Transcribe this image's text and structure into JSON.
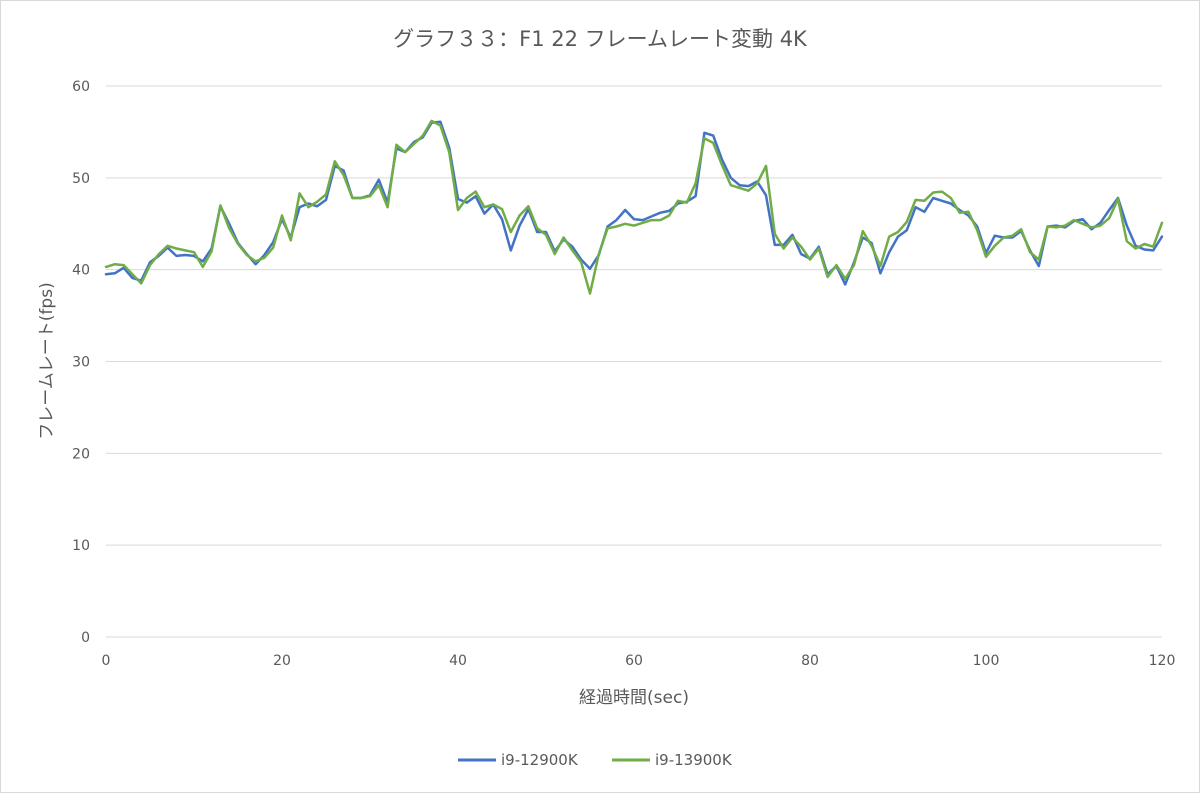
{
  "chart_data": {
    "type": "line",
    "title": "グラフ３３：F1 22 フレームレート変動 4K",
    "xlabel": "経過時間(sec)",
    "ylabel": "フレームレート(fps)",
    "xlim": [
      0,
      120
    ],
    "ylim": [
      0,
      60
    ],
    "x_ticks": [
      0,
      20,
      40,
      60,
      80,
      100,
      120
    ],
    "y_ticks": [
      0,
      10,
      20,
      30,
      40,
      50,
      60
    ],
    "grid": "horizontal",
    "legend_position": "bottom",
    "colors": {
      "i9-12900K": "#4472c4",
      "i9-13900K": "#70ad47"
    },
    "x": [
      0,
      1,
      2,
      3,
      4,
      5,
      6,
      7,
      8,
      9,
      10,
      11,
      12,
      13,
      14,
      15,
      16,
      17,
      18,
      19,
      20,
      21,
      22,
      23,
      24,
      25,
      26,
      27,
      28,
      29,
      30,
      31,
      32,
      33,
      34,
      35,
      36,
      37,
      38,
      39,
      40,
      41,
      42,
      43,
      44,
      45,
      46,
      47,
      48,
      49,
      50,
      51,
      52,
      53,
      54,
      55,
      56,
      57,
      58,
      59,
      60,
      61,
      62,
      63,
      64,
      65,
      66,
      67,
      68,
      69,
      70,
      71,
      72,
      73,
      74,
      75,
      76,
      77,
      78,
      79,
      80,
      81,
      82,
      83,
      84,
      85,
      86,
      87,
      88,
      89,
      90,
      91,
      92,
      93,
      94,
      95,
      96,
      97,
      98,
      99,
      100,
      101,
      102,
      103,
      104,
      105,
      106,
      107,
      108,
      109,
      110,
      111,
      112,
      113,
      114,
      115,
      116,
      117,
      118,
      119,
      120
    ],
    "series": [
      {
        "name": "i9-12900K",
        "values": [
          39.5,
          39.6,
          40.2,
          39.1,
          38.8,
          40.8,
          41.5,
          42.4,
          41.5,
          41.6,
          41.5,
          40.9,
          42.3,
          46.9,
          45.0,
          42.9,
          41.7,
          40.6,
          41.6,
          43.0,
          45.5,
          43.5,
          46.8,
          47.2,
          46.9,
          47.6,
          51.3,
          50.8,
          47.8,
          47.8,
          48.1,
          49.8,
          47.3,
          53.2,
          52.8,
          53.9,
          54.4,
          56.0,
          56.1,
          53.3,
          47.7,
          47.3,
          48.0,
          46.1,
          47.1,
          45.5,
          42.1,
          44.8,
          46.6,
          44.1,
          44.1,
          42.0,
          43.3,
          42.5,
          41.1,
          40.1,
          41.6,
          44.7,
          45.4,
          46.5,
          45.5,
          45.4,
          45.8,
          46.2,
          46.4,
          47.2,
          47.4,
          48.0,
          54.9,
          54.6,
          52.0,
          50.0,
          49.2,
          49.1,
          49.6,
          48.1,
          42.7,
          42.7,
          43.8,
          41.7,
          41.2,
          42.5,
          39.5,
          40.4,
          38.4,
          40.8,
          43.5,
          42.9,
          39.6,
          41.9,
          43.6,
          44.3,
          46.8,
          46.3,
          47.8,
          47.5,
          47.2,
          46.5,
          45.9,
          44.7,
          41.8,
          43.7,
          43.5,
          43.5,
          44.2,
          42.1,
          40.4,
          44.7,
          44.8,
          44.6,
          45.3,
          45.5,
          44.4,
          45.1,
          46.5,
          47.8,
          44.8,
          42.6,
          42.2,
          42.1,
          43.6
        ],
        "label_visible": false
      },
      {
        "name": "i9-13900K",
        "values": [
          40.3,
          40.6,
          40.5,
          39.5,
          38.5,
          40.5,
          41.7,
          42.6,
          42.3,
          42.1,
          41.9,
          40.3,
          42.0,
          47.0,
          44.5,
          42.8,
          41.6,
          40.9,
          41.3,
          42.4,
          45.9,
          43.2,
          48.3,
          46.8,
          47.4,
          48.2,
          51.8,
          50.3,
          47.8,
          47.8,
          48.0,
          49.2,
          46.8,
          53.6,
          52.8,
          53.7,
          54.6,
          56.2,
          55.7,
          52.8,
          46.5,
          47.8,
          48.5,
          46.8,
          47.1,
          46.6,
          44.1,
          45.9,
          46.9,
          44.5,
          43.8,
          41.7,
          43.5,
          42.1,
          40.8,
          37.4,
          41.7,
          44.5,
          44.7,
          45.0,
          44.8,
          45.1,
          45.4,
          45.4,
          45.9,
          47.5,
          47.3,
          49.4,
          54.3,
          53.8,
          51.4,
          49.2,
          48.9,
          48.6,
          49.4,
          51.3,
          43.9,
          42.3,
          43.5,
          42.5,
          41.1,
          42.3,
          39.2,
          40.5,
          39.0,
          40.5,
          44.2,
          42.6,
          40.4,
          43.6,
          44.1,
          45.2,
          47.6,
          47.5,
          48.4,
          48.5,
          47.8,
          46.2,
          46.3,
          44.3,
          41.4,
          42.6,
          43.5,
          43.7,
          44.4,
          41.9,
          41.1,
          44.7,
          44.6,
          44.8,
          45.4,
          45.0,
          44.6,
          44.8,
          45.6,
          47.7,
          43.1,
          42.3,
          42.8,
          42.5,
          45.1
        ]
      }
    ]
  }
}
